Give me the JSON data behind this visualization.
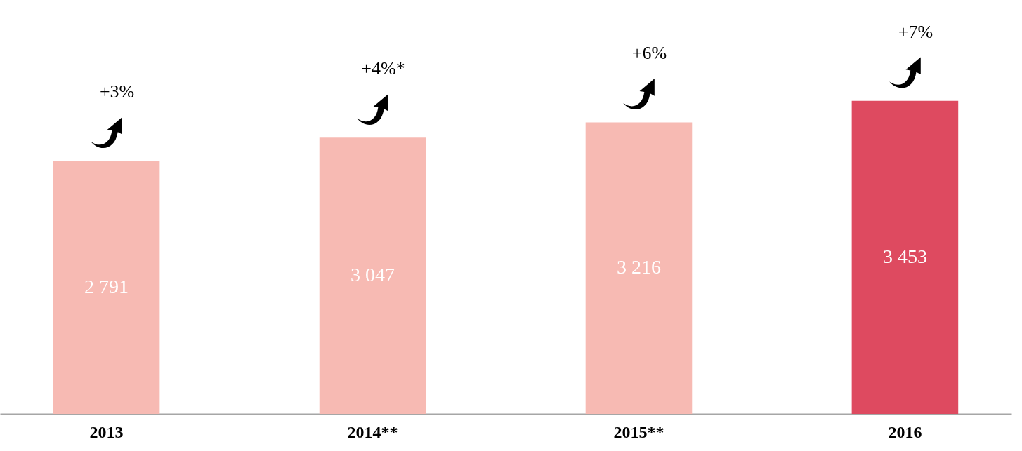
{
  "chart_data": {
    "type": "bar",
    "categories": [
      "2013",
      "2014**",
      "2015**",
      "2016"
    ],
    "values": [
      2791,
      3047,
      3216,
      3453
    ],
    "colors": [
      "#f7bab3",
      "#f7bab3",
      "#f7bab3",
      "#de4a60"
    ],
    "value_labels": [
      "2 791",
      "3 047",
      "3 216",
      "3 453"
    ],
    "annotations": [
      "+3%",
      "+4%*",
      "+6%",
      "+7%"
    ],
    "grid": false
  }
}
